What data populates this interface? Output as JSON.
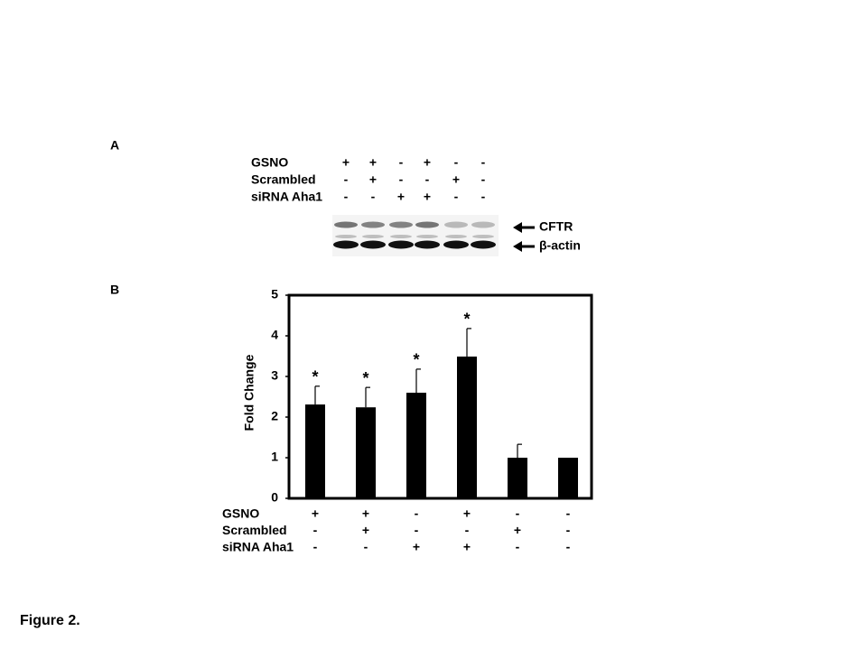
{
  "figure_label": "Figure 2.",
  "panels": {
    "a": "A",
    "b": "B"
  },
  "blot": {
    "treatments": [
      {
        "label": "GSNO",
        "signs": [
          "+",
          "+",
          "-",
          "+",
          "-",
          "-"
        ]
      },
      {
        "label": "Scrambled",
        "signs": [
          "-",
          "+",
          "-",
          "-",
          "+",
          "-"
        ]
      },
      {
        "label": "siRNA Aha1",
        "signs": [
          "-",
          "-",
          "+",
          "+",
          "-",
          "-"
        ]
      }
    ],
    "bands": [
      "CFTR",
      "β-actin"
    ]
  },
  "chart_data": {
    "type": "bar",
    "y_label": "Fold Change",
    "values": [
      2.31,
      2.24,
      2.6,
      3.49,
      1.0,
      1.0
    ],
    "errors": [
      0.45,
      0.49,
      0.58,
      0.69,
      0.33,
      null
    ],
    "annotations": [
      "*",
      "*",
      "*",
      "*",
      null,
      null
    ],
    "color": "#000000",
    "ylim": [
      0,
      5
    ],
    "yticks": [
      0,
      1,
      2,
      3,
      4,
      5
    ],
    "treatments": [
      {
        "label": "GSNO",
        "signs": [
          "+",
          "+",
          "-",
          "+",
          "-",
          "-"
        ]
      },
      {
        "label": "Scrambled",
        "signs": [
          "-",
          "+",
          "-",
          "-",
          "+",
          "-"
        ]
      },
      {
        "label": "siRNA Aha1",
        "signs": [
          "-",
          "-",
          "+",
          "+",
          "-",
          "-"
        ]
      }
    ]
  }
}
